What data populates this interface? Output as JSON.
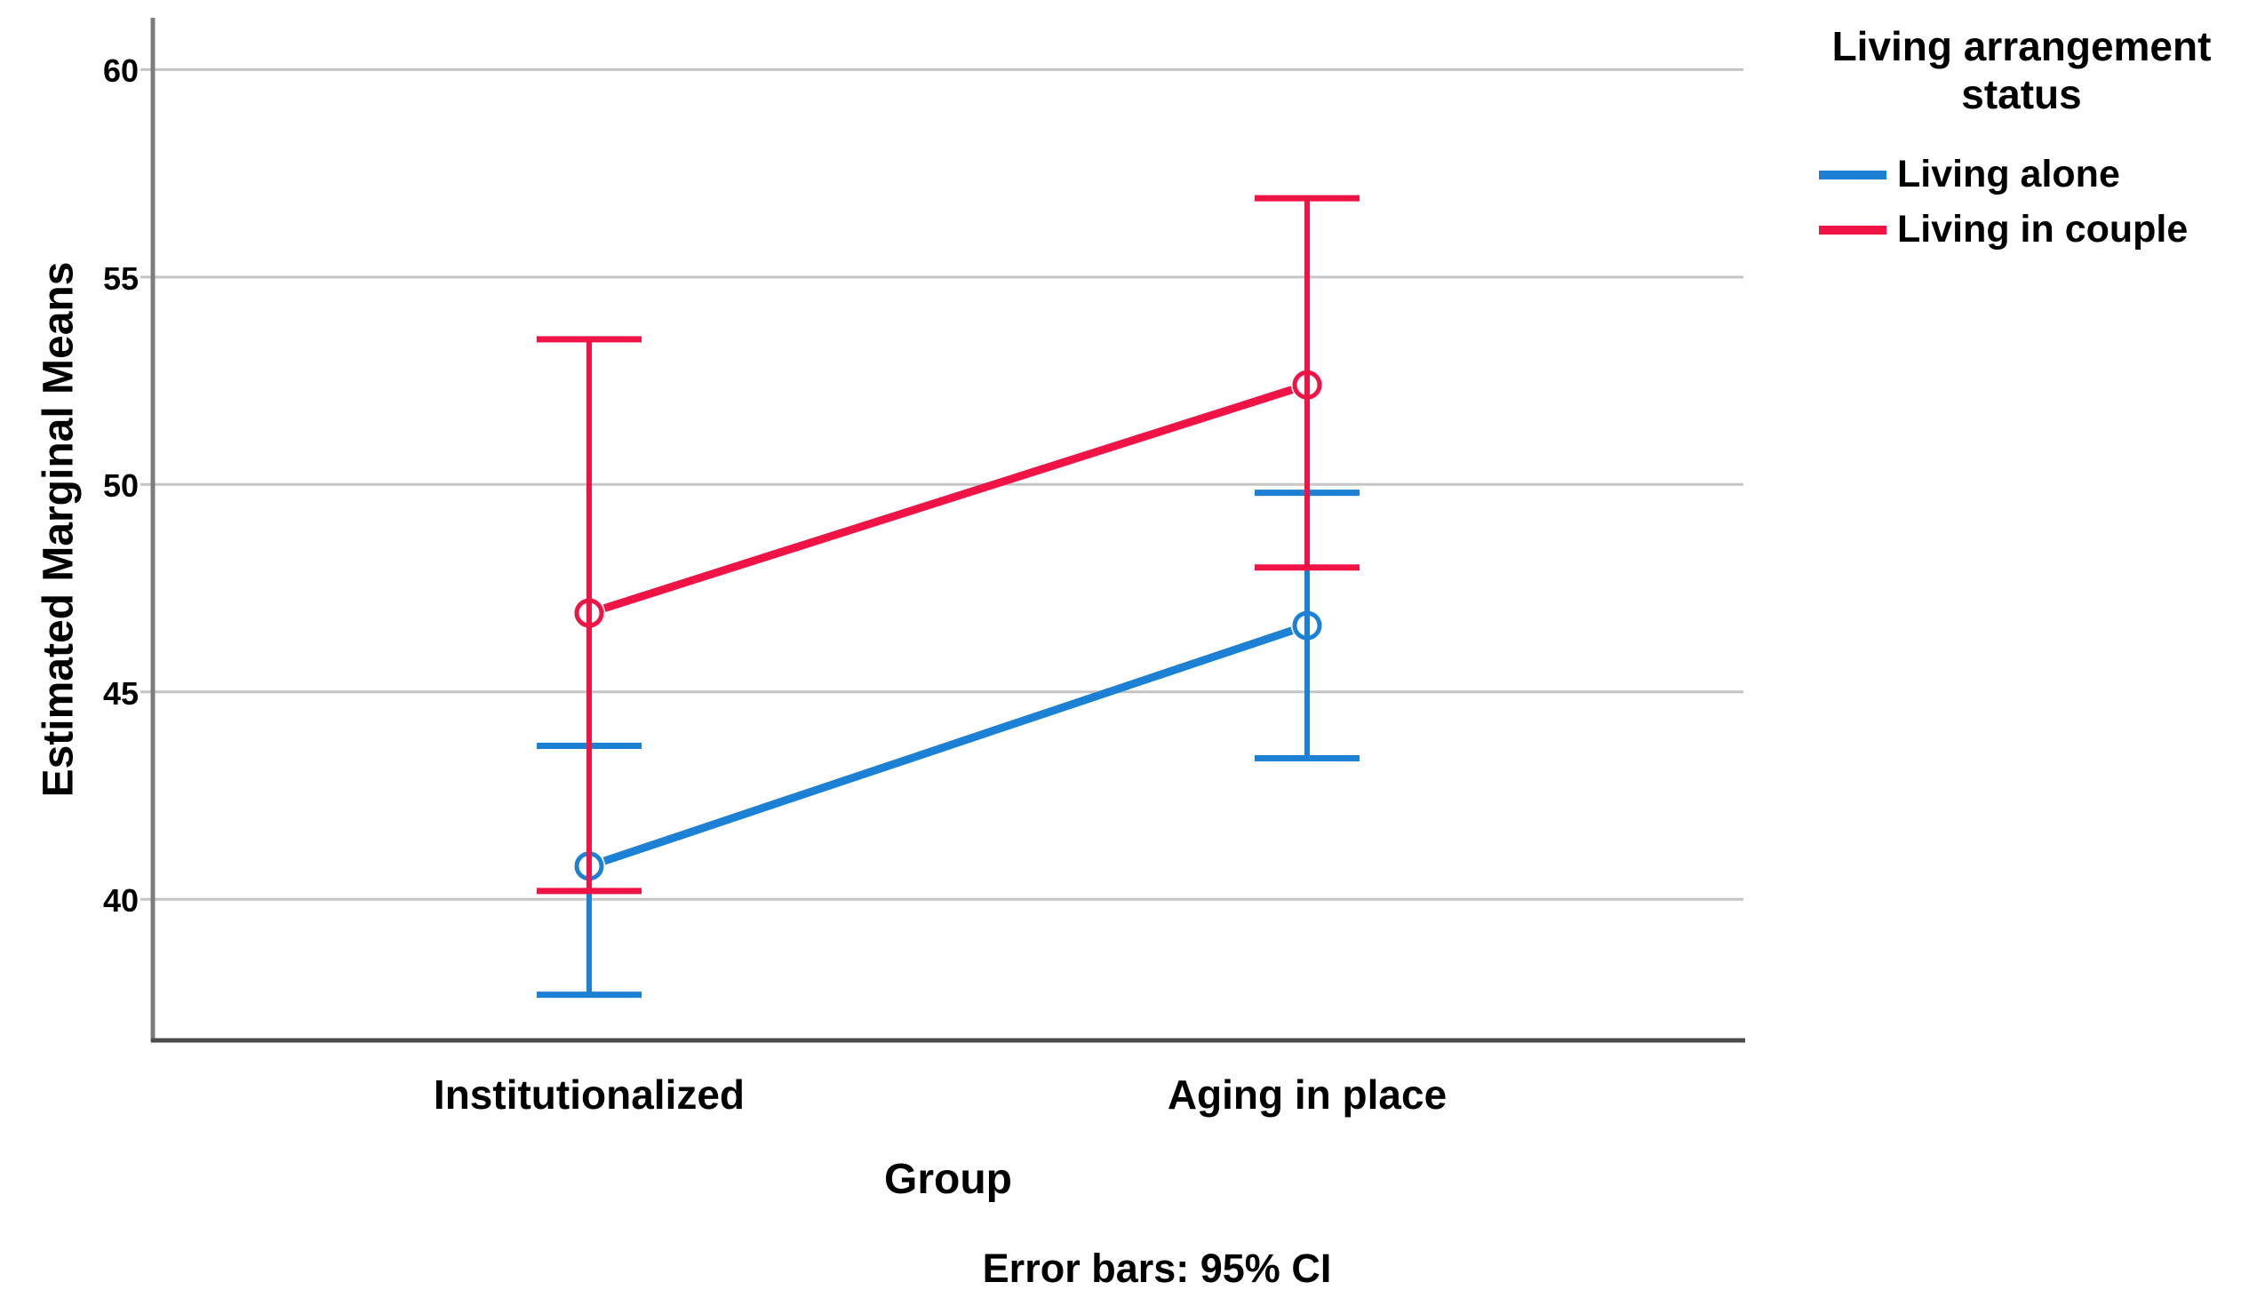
{
  "figure": {
    "background": "#ffffff"
  },
  "chart_data": {
    "type": "line",
    "categories": [
      "Institutionalized",
      "Aging in place"
    ],
    "series": [
      {
        "name": "Living alone",
        "color": "#1C81D4",
        "means": [
          40.8,
          46.6
        ],
        "ci_low": [
          37.7,
          43.4
        ],
        "ci_high": [
          43.7,
          49.8
        ]
      },
      {
        "name": "Living in couple",
        "color": "#F01446",
        "means": [
          46.9,
          52.4
        ],
        "ci_low": [
          40.2,
          48.0
        ],
        "ci_high": [
          53.5,
          56.9
        ]
      }
    ],
    "xlabel": "Group",
    "ylabel": "Estimated Marginal Means",
    "yticks": [
      40,
      45,
      50,
      55,
      60
    ],
    "ylim": [
      36.6,
      61.25
    ],
    "grid": true,
    "legend_position": "right",
    "legend_title": "Living arrangement status",
    "footnote": "Error bars: 95% CI",
    "error_bars": "95% CI",
    "marker": "open-circle"
  },
  "colors": {
    "grid": "#c5c5c5",
    "axis_left": "#7d7d7d",
    "axis_bottom": "#4d4d4d",
    "text": "#000000"
  }
}
